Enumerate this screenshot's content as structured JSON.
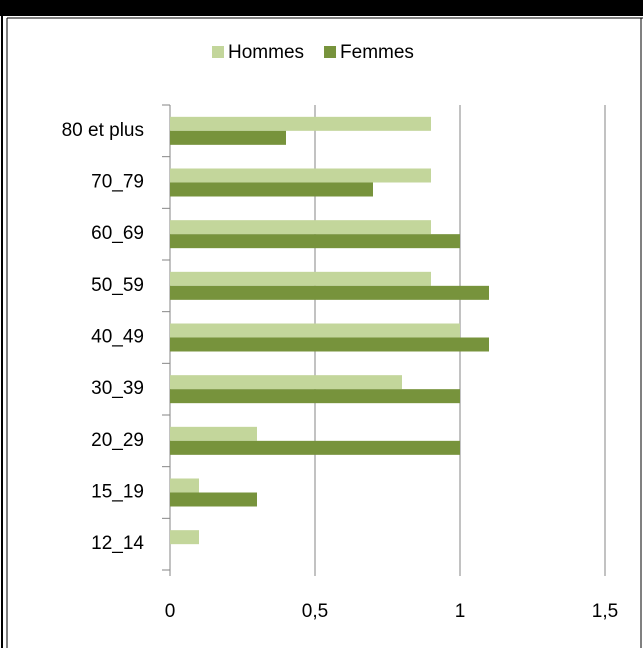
{
  "chart_data": {
    "type": "hbar",
    "categories": [
      "80 et plus",
      "70_79",
      "60_69",
      "50_59",
      "40_49",
      "30_39",
      "20_29",
      "15_19",
      "12_14"
    ],
    "series": [
      {
        "name": "Hommes",
        "color": "#c3d69b",
        "values": [
          0.9,
          0.9,
          0.9,
          0.9,
          1.0,
          0.8,
          0.3,
          0.1,
          0.1
        ]
      },
      {
        "name": "Femmes",
        "color": "#77933c",
        "values": [
          0.4,
          0.7,
          1.0,
          1.1,
          1.1,
          1.0,
          1.0,
          0.3,
          0
        ]
      }
    ],
    "xlim": [
      0,
      1.5
    ],
    "xticks": [
      0,
      {
        "value": 0.5,
        "label": "0,5"
      },
      1,
      {
        "value": 1.5,
        "label": "1,5"
      }
    ],
    "grid": true,
    "legend": "top"
  }
}
